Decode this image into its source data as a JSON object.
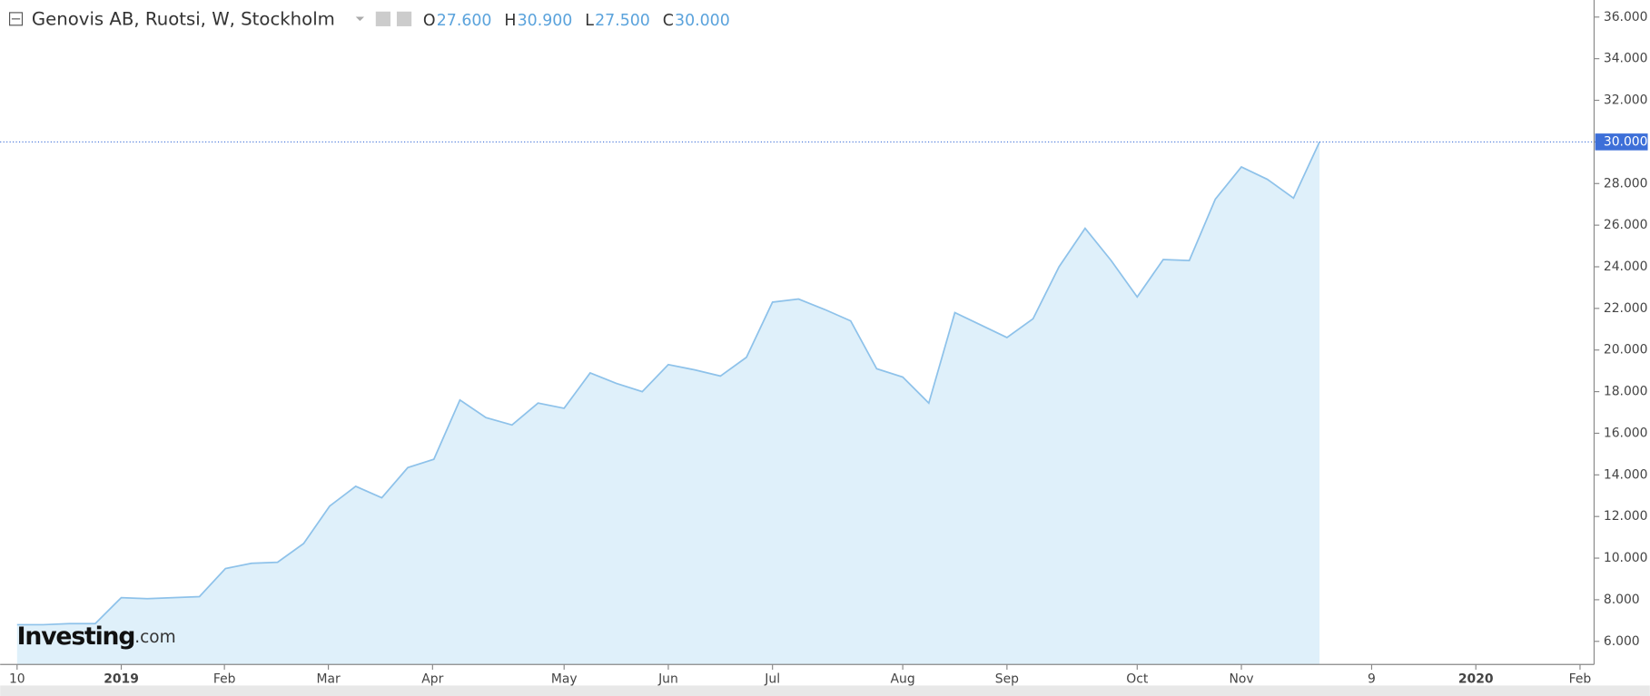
{
  "chart_data": {
    "type": "area",
    "title": "Genovis AB, Ruotsi, W, Stockholm",
    "ohlc": {
      "labels": [
        "O",
        "H",
        "L",
        "C"
      ],
      "values": [
        27.6,
        30.9,
        27.5,
        30
      ],
      "value_labels": [
        "27.600",
        "30.900",
        "27.500",
        "30.000"
      ]
    },
    "logo": [
      "Investing",
      ".com"
    ],
    "color": "#8ec2ea",
    "fill": "#dff0fa",
    "values": [
      6.8,
      6.8,
      6.85,
      6.85,
      8.1,
      8.05,
      8.1,
      8.15,
      9.5,
      9.75,
      9.8,
      10.7,
      12.5,
      13.45,
      12.9,
      14.35,
      14.75,
      17.6,
      16.75,
      16.4,
      17.45,
      17.2,
      18.9,
      18.4,
      18.0,
      19.3,
      19.05,
      18.75,
      19.65,
      22.3,
      22.45,
      21.95,
      21.4,
      19.1,
      18.7,
      17.45,
      21.8,
      21.2,
      20.6,
      21.5,
      24.0,
      25.85,
      24.3,
      22.55,
      24.35,
      24.3,
      27.25,
      28.8,
      28.2,
      27.3,
      30.0
    ],
    "xlim": [
      -0.65,
      60.54
    ],
    "xticks": [
      {
        "value": 0,
        "label": "10"
      },
      {
        "value": 4,
        "label": "2019"
      },
      {
        "value": 7.96,
        "label": "Feb"
      },
      {
        "value": 11.95,
        "label": "Mar"
      },
      {
        "value": 15.95,
        "label": "Apr"
      },
      {
        "value": 21,
        "label": "May"
      },
      {
        "value": 25,
        "label": "Jun"
      },
      {
        "value": 29,
        "label": "Jul"
      },
      {
        "value": 34,
        "label": "Aug"
      },
      {
        "value": 38,
        "label": "Sep"
      },
      {
        "value": 43,
        "label": "Oct"
      },
      {
        "value": 47,
        "label": "Nov"
      },
      {
        "value": 52,
        "label": "9"
      },
      {
        "value": 56,
        "label": "2020"
      },
      {
        "value": 60,
        "label": "Feb"
      }
    ],
    "ylim": [
      4.89,
      36.82
    ],
    "yticks": [
      {
        "value": 6,
        "label": "6.000"
      },
      {
        "value": 8,
        "label": "8.000"
      },
      {
        "value": 10,
        "label": "10.000"
      },
      {
        "value": 12,
        "label": "12.000"
      },
      {
        "value": 14,
        "label": "14.000"
      },
      {
        "value": 16,
        "label": "16.000"
      },
      {
        "value": 18,
        "label": "18.000"
      },
      {
        "value": 20,
        "label": "20.000"
      },
      {
        "value": 22,
        "label": "22.000"
      },
      {
        "value": 24,
        "label": "24.000"
      },
      {
        "value": 26,
        "label": "26.000"
      },
      {
        "value": 28,
        "label": "28.000"
      },
      {
        "value": 30,
        "label": "30.000"
      },
      {
        "value": 32,
        "label": "32.000"
      },
      {
        "value": 34,
        "label": "34.000"
      },
      {
        "value": 36,
        "label": "36.000"
      }
    ]
  }
}
